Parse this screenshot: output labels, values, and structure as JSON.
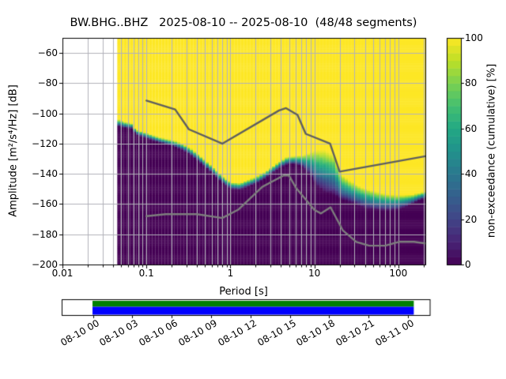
{
  "title": "BW.BHG..BHZ   2025-08-10 -- 2025-08-10  (48/48 segments)",
  "axes": {
    "xlabel": "Period [s]",
    "ylabel": "Amplitude [m²/s⁴/Hz] [dB]",
    "x_ticks": [
      {
        "v": 0.01,
        "label": "0.01"
      },
      {
        "v": 0.1,
        "label": "0.1"
      },
      {
        "v": 1,
        "label": "1"
      },
      {
        "v": 10,
        "label": "10"
      },
      {
        "v": 100,
        "label": "100"
      }
    ],
    "y_ticks": [
      {
        "v": -60,
        "label": "−60"
      },
      {
        "v": -80,
        "label": "−80"
      },
      {
        "v": -100,
        "label": "−100"
      },
      {
        "v": -120,
        "label": "−120"
      },
      {
        "v": -140,
        "label": "−140"
      },
      {
        "v": -160,
        "label": "−160"
      },
      {
        "v": -180,
        "label": "−180"
      },
      {
        "v": -200,
        "label": "−200"
      }
    ]
  },
  "colorbar": {
    "label": "non-exceedance (cumulative) [%]",
    "ticks": [
      {
        "v": 0,
        "label": "0"
      },
      {
        "v": 20,
        "label": "20"
      },
      {
        "v": 40,
        "label": "40"
      },
      {
        "v": 60,
        "label": "60"
      },
      {
        "v": 80,
        "label": "80"
      },
      {
        "v": 100,
        "label": "100"
      }
    ],
    "segments": 30,
    "range": [
      0,
      100
    ]
  },
  "coverage": {
    "tick_labels": [
      "08-10 00",
      "08-10 03",
      "08-10 06",
      "08-10 09",
      "08-10 12",
      "08-10 15",
      "08-10 18",
      "08-10 21",
      "08-11 00"
    ],
    "bar_colors": {
      "top": "#008000",
      "bottom": "#0000ff"
    }
  },
  "colors": {
    "background": "#ffffff",
    "grid": "#b2b2ba",
    "spine": "#000000",
    "nhnm_line": "#5f5f5f",
    "nlnm_line": "#7d7d7d",
    "heat_max": "#fde725",
    "heat_min": "#440154",
    "viridis_stops": [
      "#440154",
      "#482475",
      "#414487",
      "#355f8d",
      "#2a788e",
      "#21918c",
      "#22a884",
      "#44bf70",
      "#7ad151",
      "#bddf26",
      "#fde725"
    ]
  },
  "chart_data": {
    "type": "heatmap",
    "xlabel": "Period [s]",
    "ylabel": "Amplitude [m²/s⁴/Hz] [dB]",
    "xscale": "log",
    "xlim": [
      0.01,
      210
    ],
    "ylim": [
      -200,
      -50
    ],
    "grid": true,
    "value_label": "non-exceedance (cumulative) [%]",
    "value_range": [
      0,
      100
    ],
    "period_min_data": 0.047,
    "period_bins_per_octave": 8,
    "db_bin_width": 1,
    "psd_envelope_comment": "triples [period_s, dB_at_0pct, dB_at_100pct]; color ramps viridis between them, dark purple below, yellow above",
    "psd_envelope": [
      [
        0.047,
        -108.5,
        -104
      ],
      [
        0.056,
        -109.5,
        -105.5
      ],
      [
        0.068,
        -110,
        -106.5
      ],
      [
        0.074,
        -113.5,
        -110.5
      ],
      [
        0.09,
        -115.5,
        -112
      ],
      [
        0.11,
        -117,
        -113.5
      ],
      [
        0.14,
        -119,
        -115.5
      ],
      [
        0.18,
        -120.5,
        -117
      ],
      [
        0.22,
        -122,
        -118
      ],
      [
        0.28,
        -124.5,
        -120.5
      ],
      [
        0.35,
        -128,
        -123.5
      ],
      [
        0.45,
        -133,
        -128.5
      ],
      [
        0.56,
        -137.5,
        -133
      ],
      [
        0.7,
        -142.5,
        -138
      ],
      [
        0.85,
        -147,
        -142.5
      ],
      [
        1.05,
        -150,
        -145.5
      ],
      [
        1.3,
        -150.5,
        -146
      ],
      [
        1.6,
        -148.5,
        -144
      ],
      [
        2.0,
        -146.5,
        -142
      ],
      [
        2.5,
        -143.5,
        -139
      ],
      [
        3.1,
        -139.5,
        -135.5
      ],
      [
        3.9,
        -136,
        -131.5
      ],
      [
        4.8,
        -133.5,
        -128.5
      ],
      [
        6.0,
        -133.5,
        -128
      ],
      [
        7.4,
        -135.5,
        -127.5
      ],
      [
        9.0,
        -141,
        -125.5
      ],
      [
        11,
        -149,
        -124
      ],
      [
        13.5,
        -152,
        -124.5
      ],
      [
        17,
        -154,
        -127
      ],
      [
        21,
        -157,
        -140.5
      ],
      [
        26,
        -158.5,
        -144
      ],
      [
        32,
        -160.5,
        -147
      ],
      [
        40,
        -162.5,
        -149.5
      ],
      [
        50,
        -163.5,
        -151
      ],
      [
        62,
        -164,
        -152.5
      ],
      [
        78,
        -164,
        -153.5
      ],
      [
        97,
        -163.5,
        -154
      ],
      [
        120,
        -162,
        -154
      ],
      [
        150,
        -159.5,
        -153.5
      ],
      [
        178,
        -157.5,
        -152.5
      ],
      [
        210,
        -156,
        -151.5
      ]
    ],
    "noise_models": {
      "nhnm": [
        [
          0.1,
          -91.5
        ],
        [
          0.22,
          -97.4
        ],
        [
          0.32,
          -110.5
        ],
        [
          0.8,
          -120.0
        ],
        [
          3.8,
          -98.0
        ],
        [
          4.6,
          -96.5
        ],
        [
          6.3,
          -101.0
        ],
        [
          7.9,
          -113.5
        ],
        [
          15.4,
          -120.0
        ],
        [
          20.0,
          -138.5
        ],
        [
          210,
          -128.3
        ]
      ],
      "nlnm": [
        [
          0.1,
          -168.0
        ],
        [
          0.17,
          -166.7
        ],
        [
          0.4,
          -166.7
        ],
        [
          0.8,
          -169.2
        ],
        [
          1.24,
          -163.7
        ],
        [
          2.4,
          -148.6
        ],
        [
          4.3,
          -141.1
        ],
        [
          5.0,
          -141.1
        ],
        [
          6.0,
          -149.0
        ],
        [
          10.0,
          -163.8
        ],
        [
          12.0,
          -166.2
        ],
        [
          15.6,
          -162.1
        ],
        [
          21.9,
          -177.5
        ],
        [
          31.6,
          -185.0
        ],
        [
          45.0,
          -187.5
        ],
        [
          70.0,
          -187.5
        ],
        [
          101.0,
          -185.0
        ],
        [
          154.0,
          -185.0
        ],
        [
          210,
          -186.0
        ]
      ]
    },
    "coverage_bar": {
      "tick_times": [
        "08-10 00",
        "08-10 03",
        "08-10 06",
        "08-10 09",
        "08-10 12",
        "08-10 15",
        "08-10 18",
        "08-10 21",
        "08-11 00"
      ],
      "data_span_ticks": [
        0,
        8.15
      ],
      "stripes": [
        "green",
        "blue"
      ]
    }
  }
}
